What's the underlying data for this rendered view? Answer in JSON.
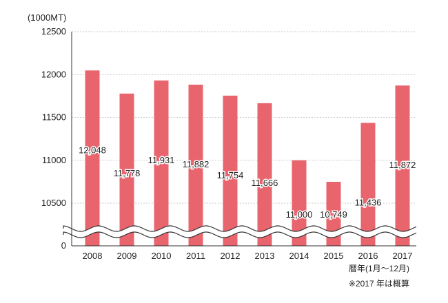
{
  "chart_data": {
    "type": "bar",
    "unit_label": "(1000MT)",
    "categories": [
      "2008",
      "2009",
      "2010",
      "2011",
      "2012",
      "2013",
      "2014",
      "2015",
      "2016",
      "2017"
    ],
    "values": [
      12048,
      11778,
      11931,
      11882,
      11754,
      11666,
      11000,
      10749,
      11436,
      11872
    ],
    "data_labels": [
      "12,048",
      "11,778",
      "11,931",
      "11,882",
      "11,754",
      "11,666",
      "11,000",
      "10,749",
      "11,436",
      "11,872"
    ],
    "yticks": [
      "12500",
      "12000",
      "11500",
      "11000",
      "10500",
      "0"
    ],
    "ytick_values": [
      12500,
      12000,
      11500,
      11000,
      10500,
      0
    ],
    "ylim": [
      10000,
      12500
    ],
    "axis_break": true,
    "grid": "horizontal-dashed",
    "legend": "none",
    "xlabel": "暦年(1月〜12月)",
    "note": "※2017 年は概算",
    "colors": {
      "bar": "#e8656e",
      "grid": "#bbbbbb",
      "axis": "#333333",
      "text": "#222222"
    }
  }
}
